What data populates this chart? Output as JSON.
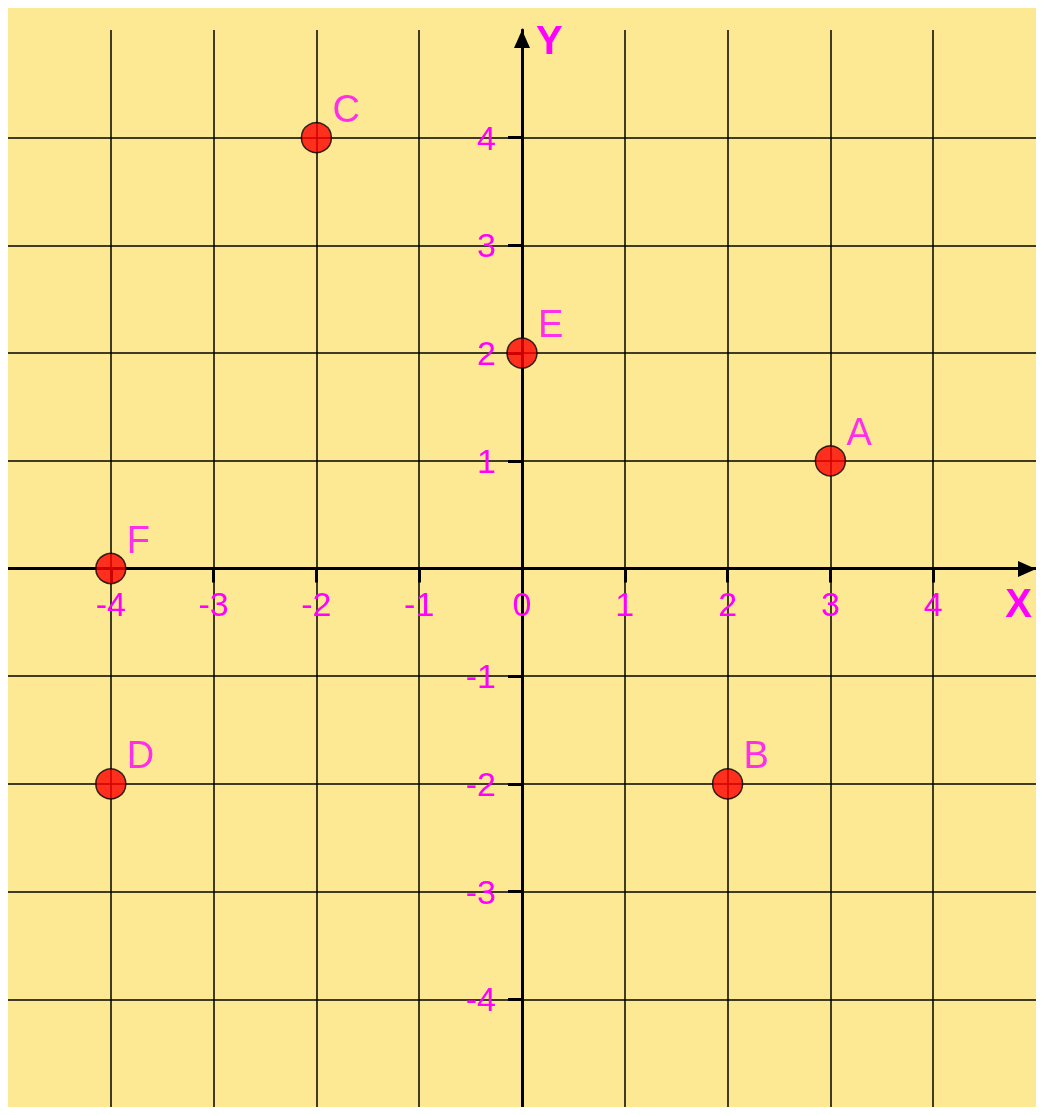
{
  "chart_data": {
    "type": "scatter",
    "xlabel": "X",
    "ylabel": "Y",
    "x": [
      3,
      2,
      -2,
      -4,
      0,
      -4
    ],
    "series": [
      {
        "color": "#ff0000",
        "values": [
          1,
          -2,
          4,
          -2,
          2,
          0
        ]
      }
    ],
    "xlim": [
      -5,
      5
    ],
    "ylim": [
      -5,
      5
    ],
    "xticks": [
      -4,
      -3,
      -2,
      -1,
      0,
      1,
      2,
      3,
      4
    ],
    "yticks": [
      -4,
      -3,
      -2,
      -1,
      {
        "value": 0,
        "label": null
      },
      1,
      2,
      3,
      4
    ],
    "grid": true,
    "marker": "circle",
    "annotations": [
      {
        "text": "A",
        "x": 3,
        "y": 1
      },
      {
        "text": "B",
        "x": 2,
        "y": -2
      },
      {
        "text": "C",
        "x": -2,
        "y": 4
      },
      {
        "text": "D",
        "x": -4,
        "y": -2
      },
      {
        "text": "E",
        "x": 0,
        "y": 2
      },
      {
        "text": "F",
        "x": -4,
        "y": 0
      }
    ]
  }
}
